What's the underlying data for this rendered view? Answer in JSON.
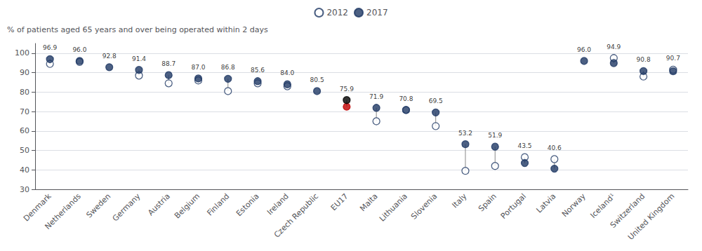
{
  "chart_data": {
    "type": "scatter",
    "ylabel": "% of patients aged 65 years and over being operated within 2 days",
    "categories": [
      "Denmark",
      "Netherlands",
      "Sweden",
      "Germany",
      "Austria",
      "Belgium",
      "Finland",
      "Estonia",
      "Ireland",
      "Czech Republic",
      "EU17",
      "Malta",
      "Lithuania",
      "Slovenia",
      "Italy",
      "Spain",
      "Portugal",
      "Latvia",
      "Norway",
      "Iceland¹",
      "Switzerland",
      "United Kingdom"
    ],
    "series": [
      {
        "name": "2012",
        "marker": "circle",
        "color": "#1f3864",
        "colors": [
          "#ffffff",
          "#ffffff",
          "#ffffff",
          "#ffffff",
          "#ffffff",
          "#ffffff",
          "#ffffff",
          "#ffffff",
          "#ffffff",
          "#ffffff",
          "#c00000",
          "#ffffff",
          "#ffffff",
          "#ffffff",
          "#ffffff",
          "#ffffff",
          "#ffffff",
          "#ffffff",
          "#ffffff",
          "#ffffff",
          "#ffffff",
          "#ffffff"
        ],
        "values": [
          94.5,
          95.5,
          null,
          88.5,
          84.5,
          86.0,
          80.5,
          84.5,
          83.0,
          null,
          72.5,
          65.0,
          70.8,
          62.5,
          39.5,
          42.0,
          46.5,
          45.5,
          null,
          97.5,
          88.0,
          91.5
        ]
      },
      {
        "name": "2017",
        "marker": "circle",
        "color": "#1f3864",
        "colors": [
          "#1f3864",
          "#1f3864",
          "#1f3864",
          "#1f3864",
          "#1f3864",
          "#1f3864",
          "#1f3864",
          "#1f3864",
          "#1f3864",
          "#1f3864",
          "#000000",
          "#1f3864",
          "#1f3864",
          "#1f3864",
          "#1f3864",
          "#1f3864",
          "#1f3864",
          "#1f3864",
          "#1f3864",
          "#1f3864",
          "#1f3864",
          "#1f3864"
        ],
        "data_labels": true,
        "values": [
          96.9,
          96.0,
          92.8,
          91.4,
          88.7,
          87.0,
          86.8,
          85.6,
          84.0,
          80.5,
          75.9,
          71.9,
          70.8,
          69.5,
          53.2,
          51.9,
          43.5,
          40.6,
          96.0,
          94.9,
          90.8,
          90.7
        ],
        "value_labels": [
          "96.9",
          "96.0",
          "92.8",
          "91.4",
          "88.7",
          "87.0",
          "86.8",
          "85.6",
          "84.0",
          "80.5",
          "75.9",
          "71.9",
          "70.8",
          "69.5",
          "53.2",
          "51.9",
          "43.5",
          "40.6",
          "96.0",
          "94.9",
          "90.8",
          "90.7"
        ]
      }
    ],
    "ylim": [
      30,
      105
    ],
    "yticks": [
      30,
      40,
      50,
      60,
      70,
      80,
      90,
      100
    ],
    "grid": true,
    "legend": "top"
  }
}
